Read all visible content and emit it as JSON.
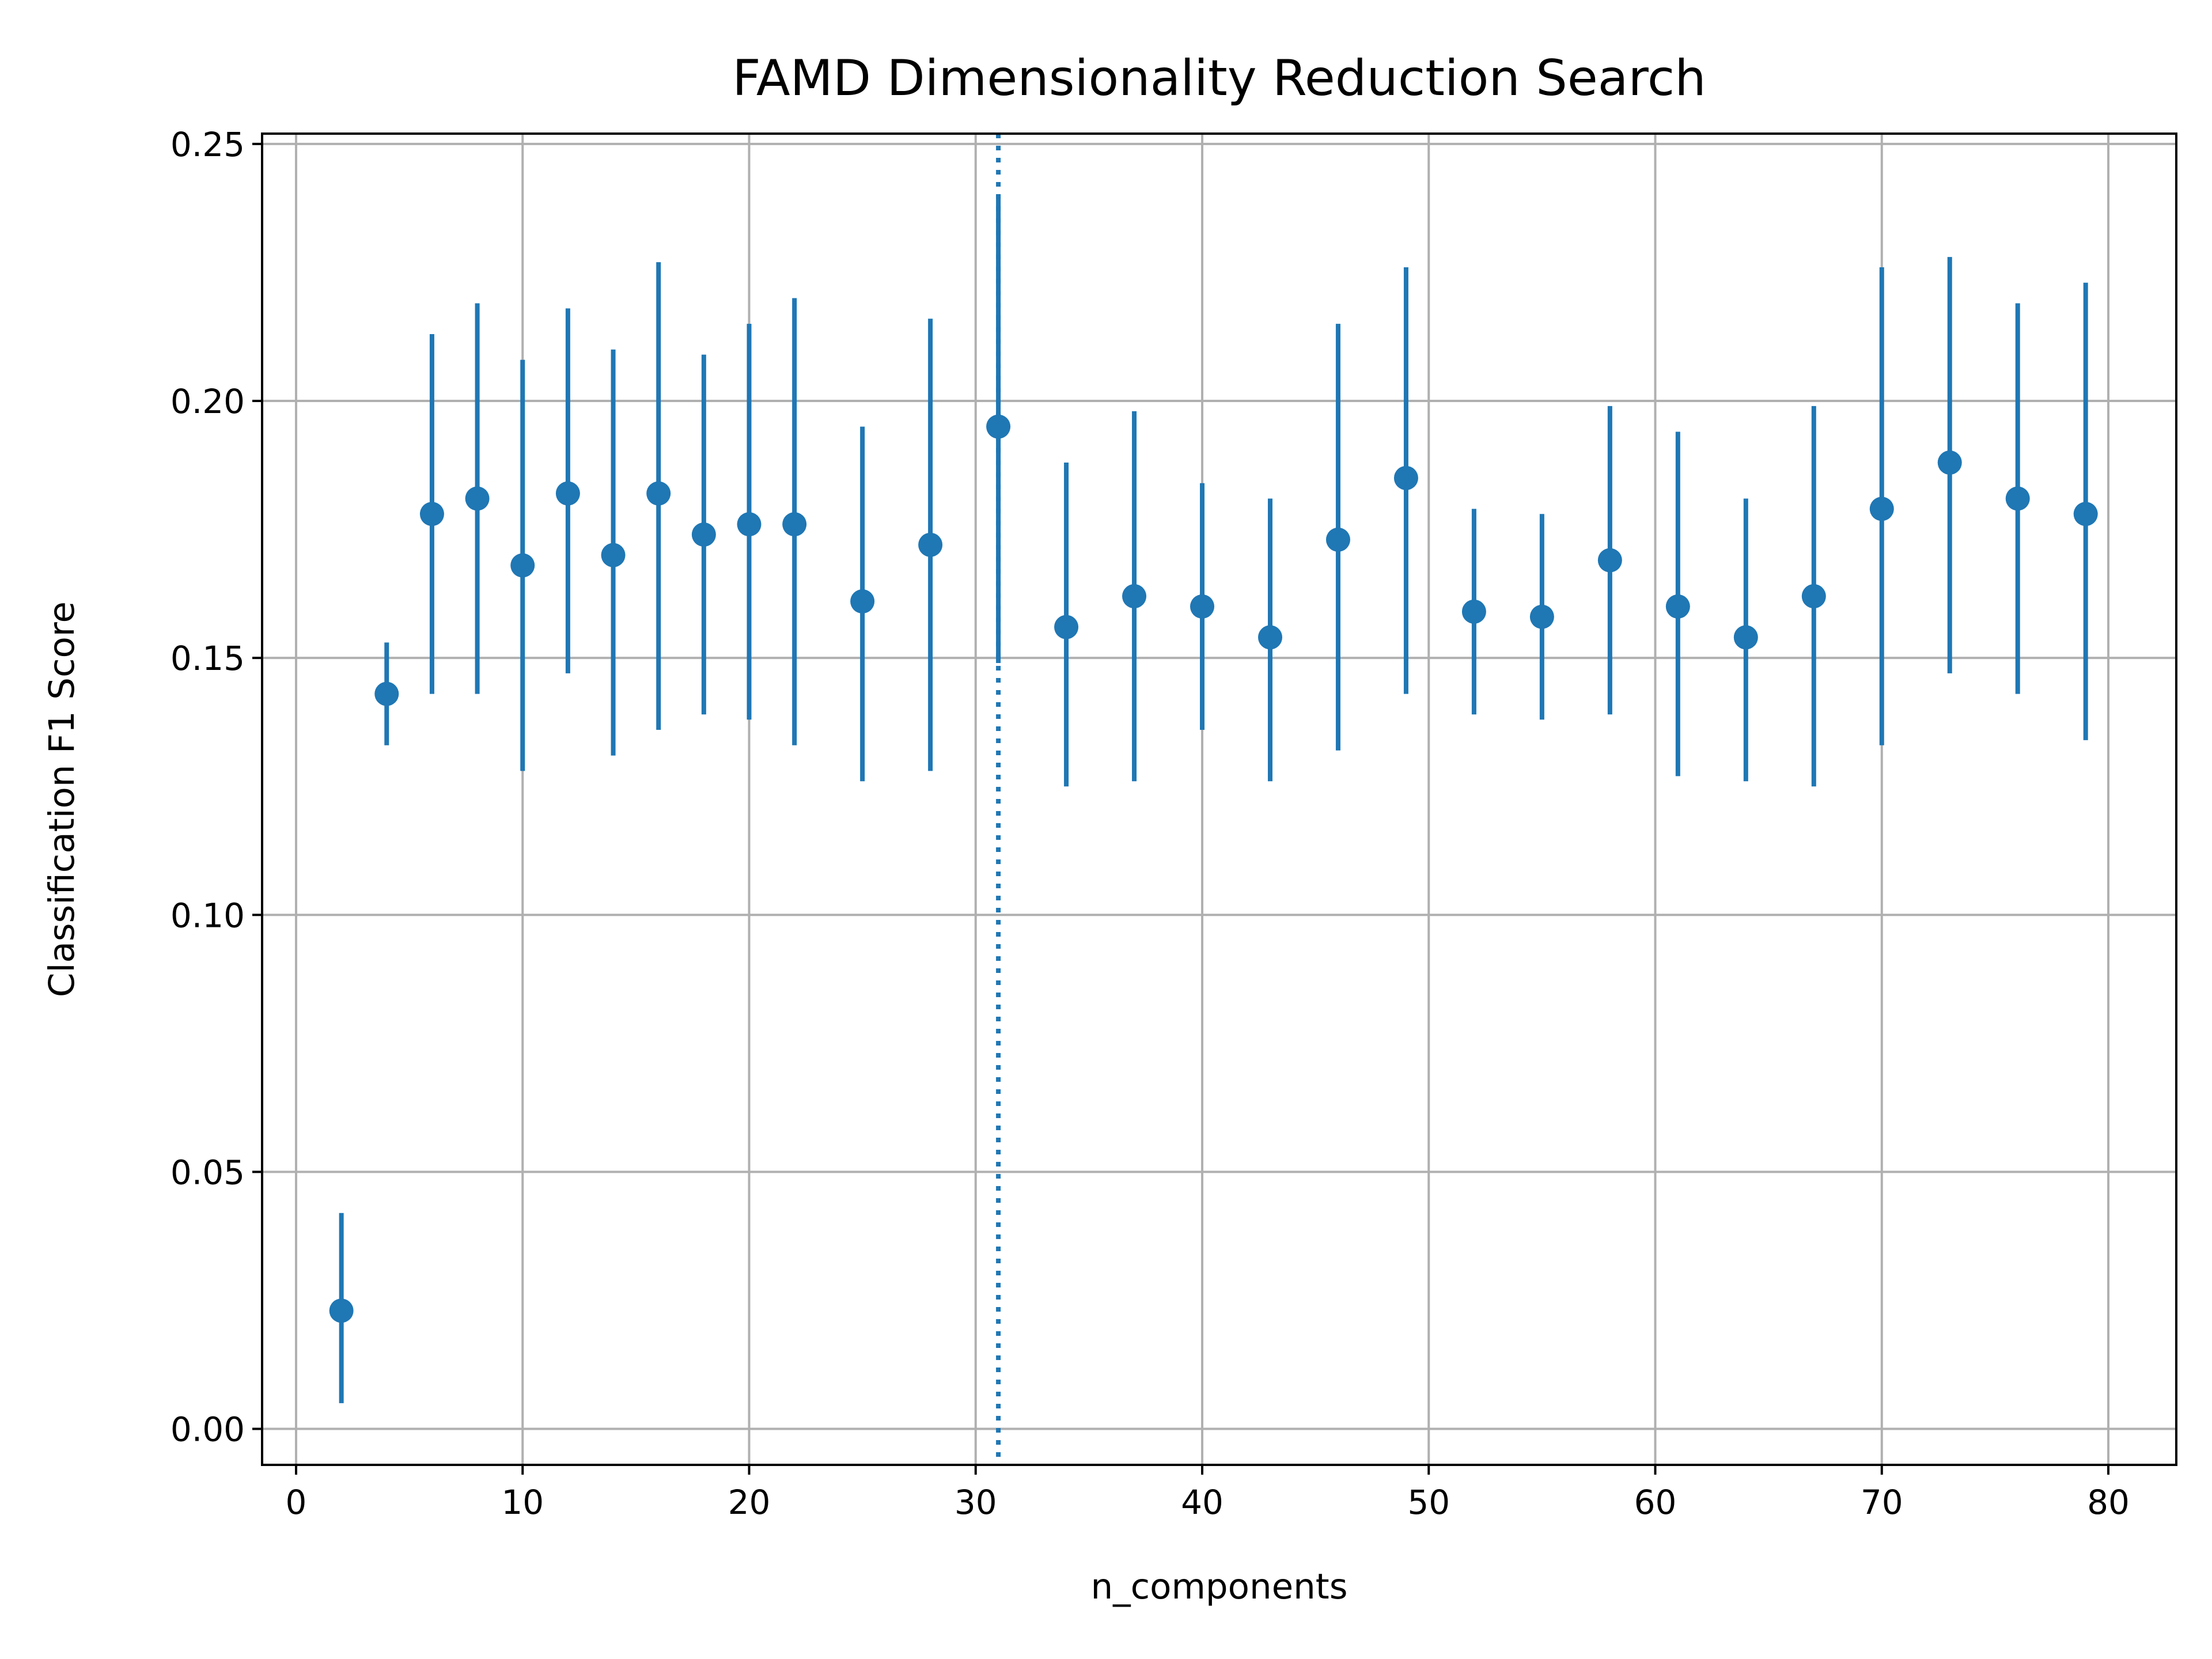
{
  "chart_data": {
    "type": "scatter",
    "title": "FAMD Dimensionality Reduction Search",
    "xlabel": "n_components",
    "ylabel": "Classification F1 Score",
    "xlim": [
      -1.5,
      83
    ],
    "ylim": [
      -0.007,
      0.252
    ],
    "xticks": [
      0,
      10,
      20,
      30,
      40,
      50,
      60,
      70,
      80
    ],
    "yticks": [
      0.0,
      0.05,
      0.1,
      0.15,
      0.2,
      0.25
    ],
    "ytick_labels": [
      "0.00",
      "0.05",
      "0.10",
      "0.15",
      "0.20",
      "0.25"
    ],
    "grid": true,
    "series_color": "#1f77b4",
    "reference_line": {
      "x": 31,
      "style": "dotted"
    },
    "points": [
      {
        "x": 2,
        "y": 0.023,
        "err_low": 0.005,
        "err_high": 0.042
      },
      {
        "x": 4,
        "y": 0.143,
        "err_low": 0.133,
        "err_high": 0.153
      },
      {
        "x": 6,
        "y": 0.178,
        "err_low": 0.143,
        "err_high": 0.213
      },
      {
        "x": 8,
        "y": 0.181,
        "err_low": 0.143,
        "err_high": 0.219
      },
      {
        "x": 10,
        "y": 0.168,
        "err_low": 0.128,
        "err_high": 0.208
      },
      {
        "x": 12,
        "y": 0.182,
        "err_low": 0.147,
        "err_high": 0.218
      },
      {
        "x": 14,
        "y": 0.17,
        "err_low": 0.131,
        "err_high": 0.21
      },
      {
        "x": 16,
        "y": 0.182,
        "err_low": 0.136,
        "err_high": 0.227
      },
      {
        "x": 18,
        "y": 0.174,
        "err_low": 0.139,
        "err_high": 0.209
      },
      {
        "x": 20,
        "y": 0.176,
        "err_low": 0.138,
        "err_high": 0.215
      },
      {
        "x": 22,
        "y": 0.176,
        "err_low": 0.133,
        "err_high": 0.22
      },
      {
        "x": 25,
        "y": 0.161,
        "err_low": 0.126,
        "err_high": 0.195
      },
      {
        "x": 28,
        "y": 0.172,
        "err_low": 0.128,
        "err_high": 0.216
      },
      {
        "x": 31,
        "y": 0.195,
        "err_low": 0.149,
        "err_high": 0.24
      },
      {
        "x": 34,
        "y": 0.156,
        "err_low": 0.125,
        "err_high": 0.188
      },
      {
        "x": 37,
        "y": 0.162,
        "err_low": 0.126,
        "err_high": 0.198
      },
      {
        "x": 40,
        "y": 0.16,
        "err_low": 0.136,
        "err_high": 0.184
      },
      {
        "x": 43,
        "y": 0.154,
        "err_low": 0.126,
        "err_high": 0.181
      },
      {
        "x": 46,
        "y": 0.173,
        "err_low": 0.132,
        "err_high": 0.215
      },
      {
        "x": 49,
        "y": 0.185,
        "err_low": 0.143,
        "err_high": 0.226
      },
      {
        "x": 52,
        "y": 0.159,
        "err_low": 0.139,
        "err_high": 0.179
      },
      {
        "x": 55,
        "y": 0.158,
        "err_low": 0.138,
        "err_high": 0.178
      },
      {
        "x": 58,
        "y": 0.169,
        "err_low": 0.139,
        "err_high": 0.199
      },
      {
        "x": 61,
        "y": 0.16,
        "err_low": 0.127,
        "err_high": 0.194
      },
      {
        "x": 64,
        "y": 0.154,
        "err_low": 0.126,
        "err_high": 0.181
      },
      {
        "x": 67,
        "y": 0.162,
        "err_low": 0.125,
        "err_high": 0.199
      },
      {
        "x": 70,
        "y": 0.179,
        "err_low": 0.133,
        "err_high": 0.226
      },
      {
        "x": 73,
        "y": 0.188,
        "err_low": 0.147,
        "err_high": 0.228
      },
      {
        "x": 76,
        "y": 0.181,
        "err_low": 0.143,
        "err_high": 0.219
      },
      {
        "x": 79,
        "y": 0.178,
        "err_low": 0.134,
        "err_high": 0.223
      }
    ]
  }
}
